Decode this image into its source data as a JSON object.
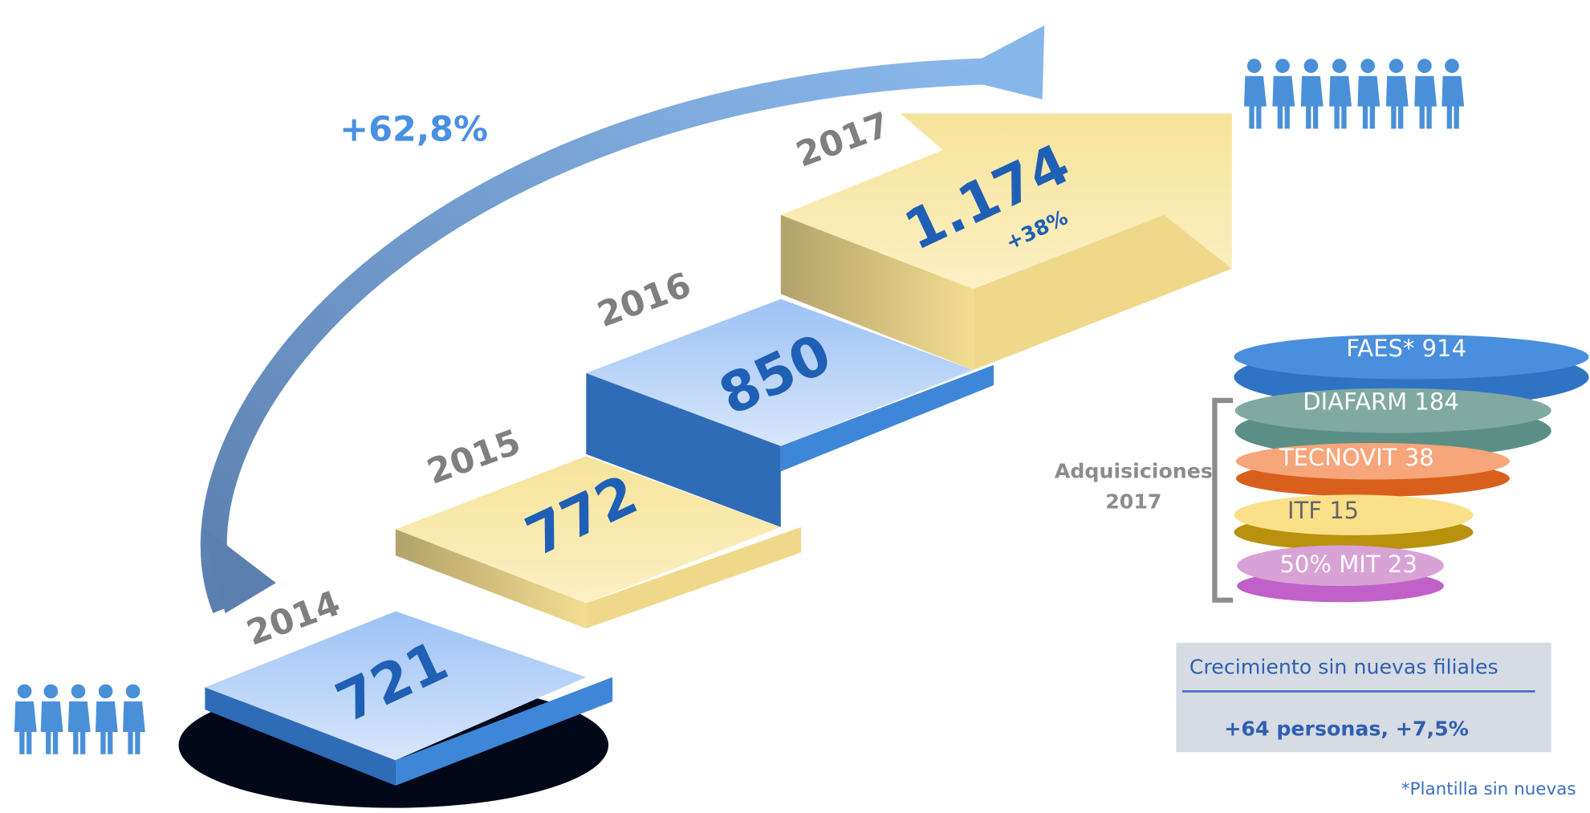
{
  "growth": "+62,8%",
  "steps": [
    {
      "year": "2014",
      "count": "721"
    },
    {
      "year": "2015",
      "count": "772"
    },
    {
      "year": "2016",
      "count": "850"
    },
    {
      "year": "2017",
      "count": "1.174",
      "change": "+38%"
    }
  ],
  "companies": [
    "FAES*  914",
    "DIAFARM 184",
    "TECNOVIT 38",
    "ITF 15",
    "50% MIT 23"
  ],
  "acquisitions_label": [
    "Adquisiciones",
    "2017"
  ],
  "organic": {
    "title": "Crecimiento sin nuevas filiales",
    "value": "+64 personas, +7,5%"
  },
  "footnote": "*Plantilla sin nuevas"
}
